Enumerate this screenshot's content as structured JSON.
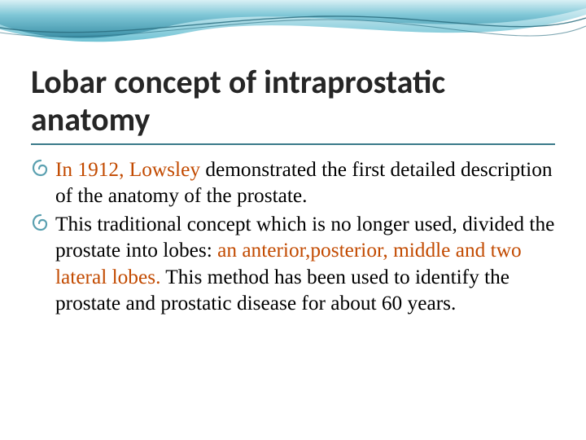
{
  "theme": {
    "background": "#ffffff",
    "title_color": "#262626",
    "title_underline_color": "#3a7a8a",
    "body_text_color": "#000000",
    "highlight_color": "#c24a00",
    "bullet_color": "#5aa0b0",
    "wave_fill_a": "#3a8fa6",
    "wave_fill_b": "#6fc2d4",
    "wave_highlight": "#d9f0f5",
    "wave_line": "#2b6e80"
  },
  "typography": {
    "title_font": "Segoe UI, Calibri, Arial, sans-serif",
    "title_fontsize_pt": 30,
    "title_weight": 700,
    "body_font": "Georgia, Times New Roman, serif",
    "body_fontsize_pt": 19,
    "line_height": 1.28
  },
  "title": "Lobar concept of intraprostatic anatomy",
  "bullets": [
    {
      "runs": [
        {
          "text": "In 1912, Lowsley",
          "highlight": true
        },
        {
          "text": " demonstrated the first detailed description of the anatomy of the prostate.",
          "highlight": false
        }
      ]
    },
    {
      "runs": [
        {
          "text": "This traditional concept which is no longer used, divided the prostate into lobes: ",
          "highlight": false
        },
        {
          "text": "an anterior,posterior, middle and two lateral lobes.",
          "highlight": true
        },
        {
          "text": " This method has been used to identify the prostate and prostatic disease for about 60 years.",
          "highlight": false
        }
      ]
    }
  ]
}
